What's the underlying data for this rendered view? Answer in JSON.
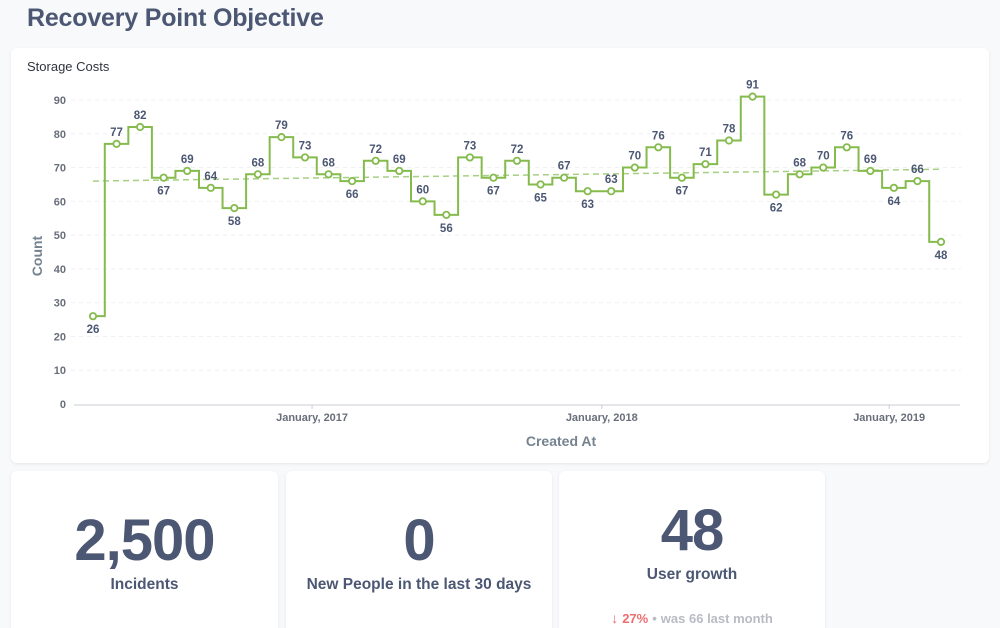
{
  "page": {
    "title": "Recovery Point Objective"
  },
  "chart_data": {
    "type": "line",
    "title": "Storage Costs",
    "xlabel": "Created At",
    "ylabel": "Count",
    "ylim": [
      0,
      90
    ],
    "yticks": [
      0,
      10,
      20,
      30,
      40,
      50,
      60,
      70,
      80,
      90
    ],
    "xticks": [
      "January, 2017",
      "January, 2018",
      "January, 2019"
    ],
    "interpolation": "step",
    "trendline": true,
    "grid": "horizontal-dashed",
    "color": "#84bb4c",
    "series": [
      {
        "values": [
          26,
          77,
          82,
          67,
          69,
          64,
          58,
          68,
          79,
          73,
          68,
          66,
          72,
          69,
          60,
          56,
          73,
          67,
          72,
          65,
          67,
          63,
          63,
          70,
          76,
          67,
          71,
          78,
          91,
          62,
          68,
          70,
          76,
          69,
          64,
          66,
          48
        ]
      }
    ],
    "trend": [
      66.0,
      69.5
    ]
  },
  "stats": [
    {
      "value": "2,500",
      "label": "Incidents"
    },
    {
      "value": "0",
      "label": "New People in the last 30 days"
    },
    {
      "value": "48",
      "label": "User growth",
      "change_pct": "27%",
      "direction": "down",
      "was_text": "was 66",
      "period": "last month"
    }
  ],
  "colors": {
    "accent": "#84bb4c",
    "negative": "#ed6e6e",
    "text": "#4c5773"
  }
}
